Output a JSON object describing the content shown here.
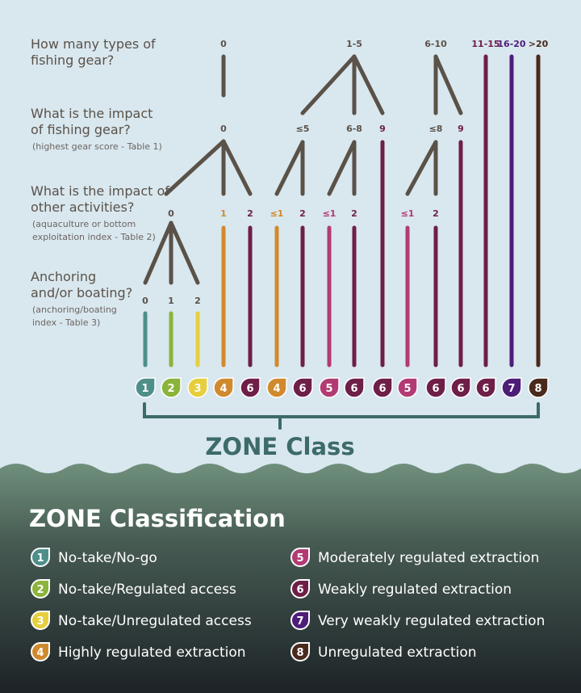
{
  "colors": {
    "sky": "#d9e7ef",
    "branch": "#5a5248",
    "sea_top": "#6f907c",
    "sea_bottom": "#1d2327",
    "zone": {
      "1": "#4e8f8a",
      "2": "#8ab43a",
      "3": "#e6cf3c",
      "4": "#d08a2e",
      "5": "#b23b74",
      "6": "#6e1f47",
      "7": "#4d1d77",
      "8": "#4a2a1c"
    }
  },
  "questions": {
    "q1": [
      "How many types of",
      "fishing gear?"
    ],
    "q2": [
      "What is the impact",
      "of fishing gear?"
    ],
    "q2_sub": "(highest gear score - Table 1)",
    "q3": [
      "What is the impact of",
      "other activities?"
    ],
    "q3_sub": [
      "(aquaculture or bottom",
      "exploitation index - Table 2)"
    ],
    "q4": [
      "Anchoring",
      "and/or boating?"
    ],
    "q4_sub": [
      "(anchoring/boating",
      "index - Table 3)"
    ]
  },
  "tree_labels": {
    "gear_types": [
      "0",
      "1-5",
      "6-10",
      "11-15",
      "16-20",
      ">20"
    ],
    "gear_impact": [
      "0",
      "≤5",
      "6-8",
      "9",
      "≤8",
      "9"
    ],
    "other_impact": [
      "0",
      "1",
      "2",
      "≤1",
      "2",
      "≤1",
      "2",
      "≤1",
      "2"
    ],
    "anchoring": [
      "0",
      "1",
      "2"
    ]
  },
  "zone_badges": [
    "1",
    "2",
    "3",
    "4",
    "6",
    "4",
    "6",
    "5",
    "6",
    "6",
    "5",
    "6",
    "6",
    "6",
    "7",
    "8"
  ],
  "zone_class_label": "ZONE Class",
  "legend": {
    "title": "ZONE Classification",
    "items": [
      {
        "num": "1",
        "label": "No-take/No-go"
      },
      {
        "num": "2",
        "label": "No-take/Regulated access"
      },
      {
        "num": "3",
        "label": "No-take/Unregulated access"
      },
      {
        "num": "4",
        "label": "Highly regulated extraction"
      },
      {
        "num": "5",
        "label": "Moderately regulated extraction"
      },
      {
        "num": "6",
        "label": "Weakly regulated extraction"
      },
      {
        "num": "7",
        "label": "Very weakly regulated extraction"
      },
      {
        "num": "8",
        "label": "Unregulated extraction"
      }
    ]
  }
}
